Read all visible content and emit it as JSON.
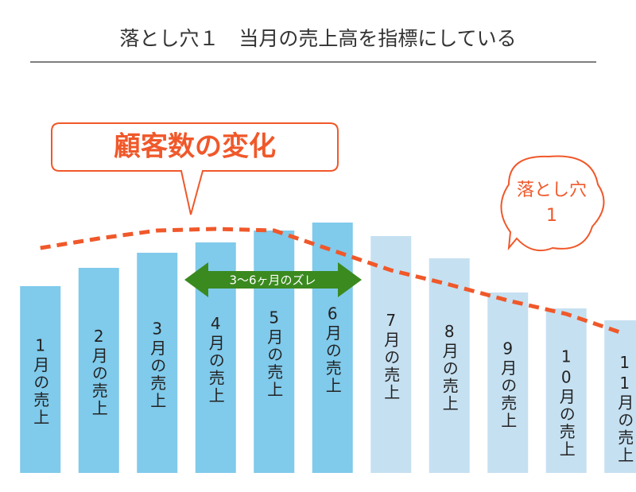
{
  "chart_data": {
    "type": "bar",
    "title": "落とし穴１　当月の売上高を指標にしている",
    "categories": [
      "1月の売上",
      "2月の売上",
      "3月の売上",
      "4月の売上",
      "5月の売上",
      "6月の売上",
      "7月の売上",
      "8月の売上",
      "9月の売上",
      "10月の売上",
      "11月の売上"
    ],
    "values": [
      235,
      258,
      277,
      290,
      305,
      315,
      298,
      270,
      227,
      207,
      192
    ],
    "colors": [
      "#80caeb",
      "#80caeb",
      "#80caeb",
      "#80caeb",
      "#80caeb",
      "#80caeb",
      "#c5e0f1",
      "#c5e0f1",
      "#c5e0f1",
      "#c5e0f1",
      "#c5e0f1"
    ],
    "ylim": [
      0,
      330
    ],
    "line": {
      "color": "#f0582a",
      "values": [
        283,
        295,
        305,
        307,
        305,
        280,
        255,
        237,
        217,
        200,
        175
      ]
    },
    "callout": "顧客数の変化",
    "cloud_lines": [
      "落とし穴",
      "1"
    ],
    "arrow_label": "3〜6ヶ月のズレ"
  }
}
